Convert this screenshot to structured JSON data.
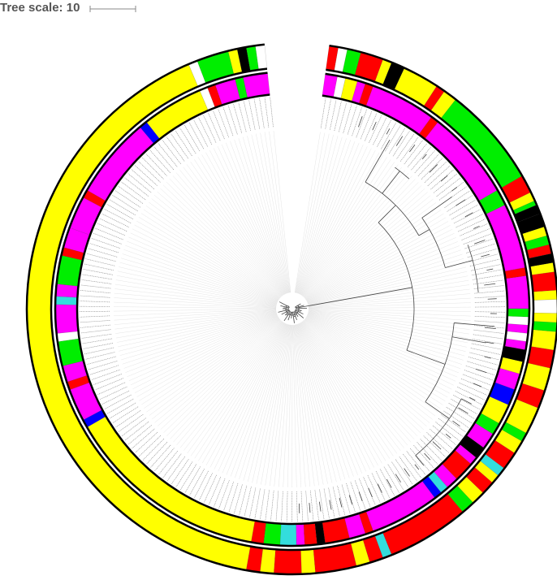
{
  "scale": {
    "label": "Tree scale: 10"
  },
  "colors": {
    "yellow": "#ffff00",
    "red": "#ff0000",
    "green": "#00ee00",
    "magenta": "#ff00ff",
    "black": "#000000",
    "cyan": "#33dddd",
    "blue": "#0000ff",
    "white": "#ffffff",
    "lightpink": "#ffccdd",
    "branch": "#444444",
    "leafline": "#d8d8d8"
  },
  "outer_ring_segments": [
    {
      "from": 190,
      "to": 337,
      "color": "yellow"
    },
    {
      "from": 337,
      "to": 339,
      "color": "white"
    },
    {
      "from": 339,
      "to": 346,
      "color": "green"
    },
    {
      "from": 346,
      "to": 348,
      "color": "yellow"
    },
    {
      "from": 348,
      "to": 350,
      "color": "black"
    },
    {
      "from": 350,
      "to": 352,
      "color": "green"
    },
    {
      "from": 352,
      "to": 354,
      "color": "white"
    },
    {
      "from": 8,
      "to": 10,
      "color": "red"
    },
    {
      "from": 10,
      "to": 12,
      "color": "white"
    },
    {
      "from": 12,
      "to": 15,
      "color": "green"
    },
    {
      "from": 15,
      "to": 20,
      "color": "red"
    },
    {
      "from": 20,
      "to": 22,
      "color": "yellow"
    },
    {
      "from": 22,
      "to": 25,
      "color": "black"
    },
    {
      "from": 25,
      "to": 33,
      "color": "yellow"
    },
    {
      "from": 33,
      "to": 35,
      "color": "red"
    },
    {
      "from": 35,
      "to": 38,
      "color": "yellow"
    },
    {
      "from": 38,
      "to": 60,
      "color": "green"
    },
    {
      "from": 60,
      "to": 64,
      "color": "red"
    },
    {
      "from": 64,
      "to": 66,
      "color": "yellow"
    },
    {
      "from": 66,
      "to": 67,
      "color": "green"
    },
    {
      "from": 67,
      "to": 69,
      "color": "black"
    },
    {
      "from": 69,
      "to": 72,
      "color": "black"
    },
    {
      "from": 72,
      "to": 74,
      "color": "yellow"
    },
    {
      "from": 74,
      "to": 76,
      "color": "green"
    },
    {
      "from": 76,
      "to": 78,
      "color": "red"
    },
    {
      "from": 78,
      "to": 80,
      "color": "black"
    },
    {
      "from": 80,
      "to": 82,
      "color": "yellow"
    },
    {
      "from": 82,
      "to": 86,
      "color": "red"
    },
    {
      "from": 86,
      "to": 88,
      "color": "yellow"
    },
    {
      "from": 88,
      "to": 91,
      "color": "white"
    },
    {
      "from": 91,
      "to": 93,
      "color": "yellow"
    },
    {
      "from": 93,
      "to": 95,
      "color": "green"
    },
    {
      "from": 95,
      "to": 99,
      "color": "yellow"
    },
    {
      "from": 99,
      "to": 103,
      "color": "red"
    },
    {
      "from": 103,
      "to": 108,
      "color": "yellow"
    },
    {
      "from": 108,
      "to": 112,
      "color": "red"
    },
    {
      "from": 112,
      "to": 118,
      "color": "yellow"
    },
    {
      "from": 118,
      "to": 120,
      "color": "green"
    },
    {
      "from": 120,
      "to": 123,
      "color": "yellow"
    },
    {
      "from": 123,
      "to": 127,
      "color": "red"
    },
    {
      "from": 127,
      "to": 129,
      "color": "cyan"
    },
    {
      "from": 129,
      "to": 131,
      "color": "yellow"
    },
    {
      "from": 131,
      "to": 134,
      "color": "red"
    },
    {
      "from": 134,
      "to": 137,
      "color": "yellow"
    },
    {
      "from": 137,
      "to": 140,
      "color": "green"
    },
    {
      "from": 140,
      "to": 158,
      "color": "red"
    },
    {
      "from": 158,
      "to": 160,
      "color": "cyan"
    },
    {
      "from": 160,
      "to": 163,
      "color": "red"
    },
    {
      "from": 163,
      "to": 166,
      "color": "yellow"
    },
    {
      "from": 166,
      "to": 175,
      "color": "red"
    },
    {
      "from": 175,
      "to": 178,
      "color": "yellow"
    },
    {
      "from": 178,
      "to": 184,
      "color": "red"
    },
    {
      "from": 184,
      "to": 187,
      "color": "yellow"
    },
    {
      "from": 187,
      "to": 190,
      "color": "red"
    }
  ],
  "inner_ring_segments": [
    {
      "from": 190,
      "to": 240,
      "color": "yellow"
    },
    {
      "from": 240,
      "to": 242,
      "color": "blue"
    },
    {
      "from": 242,
      "to": 250,
      "color": "magenta"
    },
    {
      "from": 250,
      "to": 252,
      "color": "red"
    },
    {
      "from": 252,
      "to": 256,
      "color": "magenta"
    },
    {
      "from": 256,
      "to": 262,
      "color": "green"
    },
    {
      "from": 262,
      "to": 264,
      "color": "white"
    },
    {
      "from": 264,
      "to": 271,
      "color": "magenta"
    },
    {
      "from": 271,
      "to": 273,
      "color": "cyan"
    },
    {
      "from": 273,
      "to": 276,
      "color": "magenta"
    },
    {
      "from": 276,
      "to": 283,
      "color": "green"
    },
    {
      "from": 283,
      "to": 285,
      "color": "red"
    },
    {
      "from": 285,
      "to": 290,
      "color": "magenta"
    },
    {
      "from": 290,
      "to": 298,
      "color": "magenta"
    },
    {
      "from": 298,
      "to": 300,
      "color": "red"
    },
    {
      "from": 300,
      "to": 320,
      "color": "magenta"
    },
    {
      "from": 320,
      "to": 322,
      "color": "blue"
    },
    {
      "from": 322,
      "to": 337,
      "color": "yellow"
    },
    {
      "from": 337,
      "to": 339,
      "color": "white"
    },
    {
      "from": 339,
      "to": 341,
      "color": "red"
    },
    {
      "from": 341,
      "to": 346,
      "color": "magenta"
    },
    {
      "from": 346,
      "to": 348,
      "color": "green"
    },
    {
      "from": 348,
      "to": 354,
      "color": "magenta"
    },
    {
      "from": 8,
      "to": 11,
      "color": "magenta"
    },
    {
      "from": 11,
      "to": 13,
      "color": "white"
    },
    {
      "from": 13,
      "to": 16,
      "color": "yellow"
    },
    {
      "from": 16,
      "to": 18,
      "color": "magenta"
    },
    {
      "from": 18,
      "to": 20,
      "color": "red"
    },
    {
      "from": 20,
      "to": 36,
      "color": "magenta"
    },
    {
      "from": 36,
      "to": 38,
      "color": "red"
    },
    {
      "from": 38,
      "to": 60,
      "color": "magenta"
    },
    {
      "from": 60,
      "to": 64,
      "color": "green"
    },
    {
      "from": 64,
      "to": 80,
      "color": "magenta"
    },
    {
      "from": 80,
      "to": 82,
      "color": "red"
    },
    {
      "from": 82,
      "to": 90,
      "color": "magenta"
    },
    {
      "from": 90,
      "to": 92,
      "color": "green"
    },
    {
      "from": 92,
      "to": 94,
      "color": "white"
    },
    {
      "from": 94,
      "to": 96,
      "color": "magenta"
    },
    {
      "from": 96,
      "to": 98,
      "color": "white"
    },
    {
      "from": 98,
      "to": 100,
      "color": "magenta"
    },
    {
      "from": 100,
      "to": 103,
      "color": "black"
    },
    {
      "from": 103,
      "to": 106,
      "color": "yellow"
    },
    {
      "from": 106,
      "to": 110,
      "color": "magenta"
    },
    {
      "from": 110,
      "to": 114,
      "color": "blue"
    },
    {
      "from": 114,
      "to": 119,
      "color": "yellow"
    },
    {
      "from": 119,
      "to": 122,
      "color": "green"
    },
    {
      "from": 122,
      "to": 126,
      "color": "magenta"
    },
    {
      "from": 126,
      "to": 129,
      "color": "black"
    },
    {
      "from": 129,
      "to": 131,
      "color": "magenta"
    },
    {
      "from": 131,
      "to": 136,
      "color": "red"
    },
    {
      "from": 136,
      "to": 139,
      "color": "magenta"
    },
    {
      "from": 139,
      "to": 141,
      "color": "cyan"
    },
    {
      "from": 141,
      "to": 143,
      "color": "blue"
    },
    {
      "from": 143,
      "to": 160,
      "color": "magenta"
    },
    {
      "from": 160,
      "to": 162,
      "color": "red"
    },
    {
      "from": 162,
      "to": 166,
      "color": "magenta"
    },
    {
      "from": 166,
      "to": 172,
      "color": "red"
    },
    {
      "from": 172,
      "to": 174,
      "color": "black"
    },
    {
      "from": 174,
      "to": 177,
      "color": "red"
    },
    {
      "from": 177,
      "to": 179,
      "color": "magenta"
    },
    {
      "from": 179,
      "to": 183,
      "color": "cyan"
    },
    {
      "from": 183,
      "to": 187,
      "color": "green"
    },
    {
      "from": 187,
      "to": 190,
      "color": "red"
    }
  ]
}
